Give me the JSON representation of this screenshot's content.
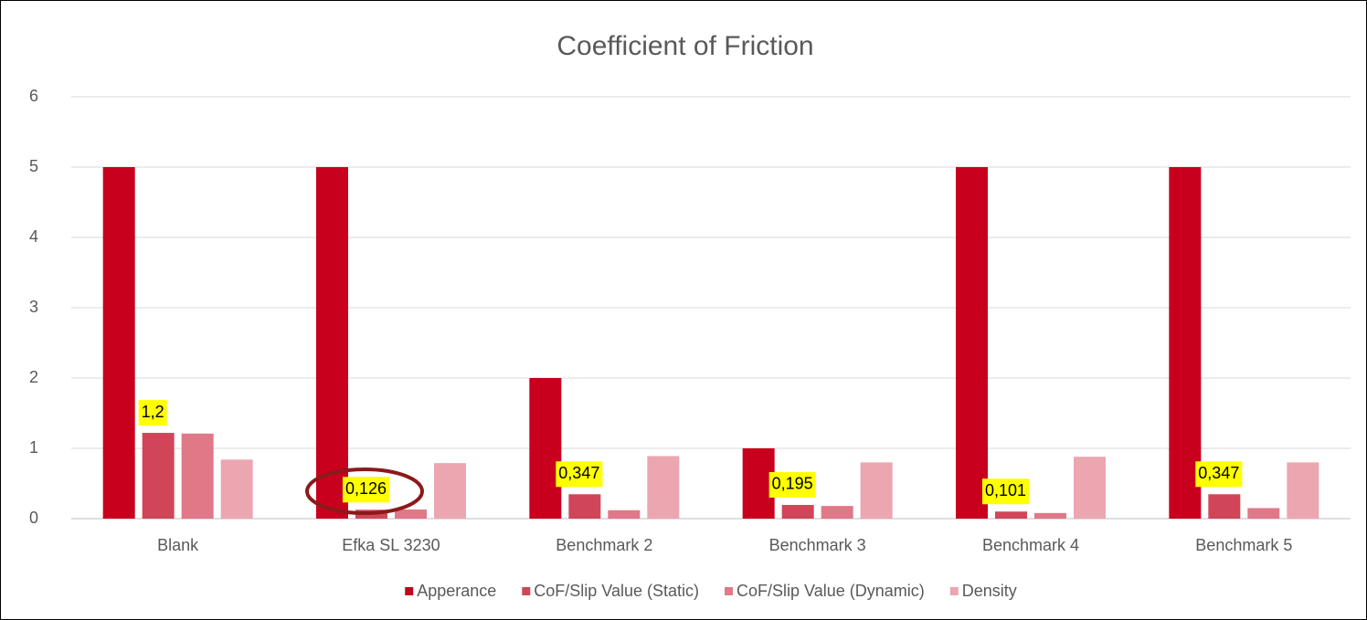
{
  "chart_data": {
    "type": "bar",
    "title": "Coefficient of Friction",
    "categories": [
      "Blank",
      "Efka SL 3230",
      "Benchmark 2",
      "Benchmark 3",
      "Benchmark 4",
      "Benchmark 5"
    ],
    "series": [
      {
        "name": "Apperance",
        "color": "#c8001e",
        "values": [
          5,
          5,
          2,
          1,
          5,
          5
        ]
      },
      {
        "name": "CoF/Slip Value (Static)",
        "color": "#d04658",
        "values": [
          1.22,
          0.126,
          0.347,
          0.195,
          0.101,
          0.347
        ],
        "value_labels": [
          "1,2",
          "0,126",
          "0,347",
          "0,195",
          "0,101",
          "0,347"
        ]
      },
      {
        "name": "CoF/Slip Value (Dynamic)",
        "color": "#e07888",
        "values": [
          1.21,
          0.13,
          0.12,
          0.18,
          0.08,
          0.15
        ]
      },
      {
        "name": "Density",
        "color": "#eba6b0",
        "values": [
          0.84,
          0.79,
          0.89,
          0.8,
          0.88,
          0.8
        ]
      }
    ],
    "ylim": [
      0,
      6
    ],
    "yticks": [
      0,
      1,
      2,
      3,
      4,
      5,
      6
    ],
    "grid": true,
    "legend": "bottom"
  }
}
